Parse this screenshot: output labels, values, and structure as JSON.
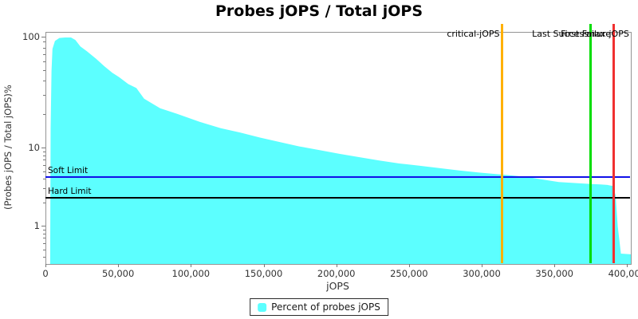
{
  "title": "Probes jOPS / Total jOPS",
  "chart_data": {
    "type": "area",
    "title": "Probes jOPS / Total jOPS",
    "xlabel": "jOPS",
    "ylabel": "(Probes jOPS / Total jOPS)%",
    "grid": false,
    "legend_position": "bottom",
    "x_axis": {
      "min": 0,
      "max": 402000,
      "tick_step": 50000,
      "tick_labels": [
        "0",
        "50,000",
        "100,000",
        "150,000",
        "200,000",
        "250,000",
        "300,000",
        "350,000",
        "400,000"
      ]
    },
    "y_axis": {
      "scale": "log",
      "min": 0.33,
      "max": 110,
      "major_ticks": [
        100,
        10,
        1
      ],
      "major_tick_labels": [
        "100",
        "10",
        "1"
      ]
    },
    "series": [
      {
        "name": "Percent of probes jOPS",
        "color": "#5CFFFF",
        "x": [
          2700,
          3000,
          3600,
          4300,
          6000,
          9000,
          13000,
          17000,
          20000,
          23500,
          28000,
          34400,
          40000,
          45400,
          50000,
          56400,
          62000,
          67300,
          78300,
          90000,
          105700,
          120000,
          133200,
          147000,
          160600,
          174000,
          188000,
          201600,
          215400,
          229000,
          242800,
          256500,
          270200,
          284000,
          297700,
          314000,
          330500,
          341000,
          352400,
          363600,
          374900,
          381000,
          386000,
          389700,
          391500,
          393000,
          395200,
          402000
        ],
        "y": [
          0.35,
          15,
          50,
          79,
          93,
          99,
          100,
          100,
          95,
          83,
          75,
          64,
          55,
          48,
          44,
          38,
          35,
          28,
          23,
          20.5,
          17.3,
          15.2,
          13.9,
          12.5,
          11.4,
          10.4,
          9.5,
          8.5,
          7.7,
          7.0,
          6.4,
          6.0,
          5.6,
          5.2,
          4.9,
          4.6,
          4.3,
          4.0,
          3.7,
          3.6,
          3.5,
          3.45,
          3.4,
          3.3,
          2.5,
          1.0,
          0.45,
          0.44
        ]
      }
    ],
    "v_markers": [
      {
        "label": "critical-jOPS",
        "value": 314000,
        "color": "#FFB000"
      },
      {
        "label": "Last Success",
        "value": 375000,
        "color": "#00DD00"
      },
      {
        "label": "First Failure",
        "value": 390500,
        "color": "#F03030"
      },
      {
        "label": "max-jOPS",
        "value": 403000,
        "color": "#CC0000"
      }
    ],
    "h_markers": [
      {
        "label": "Soft Limit",
        "value": 4.2,
        "color": "#1010E8"
      },
      {
        "label": "Hard Limit",
        "value": 2.3,
        "color": "#000000"
      }
    ],
    "legend": {
      "items": [
        {
          "label": "Percent of probes jOPS",
          "color": "#5CFFFF"
        }
      ]
    }
  }
}
